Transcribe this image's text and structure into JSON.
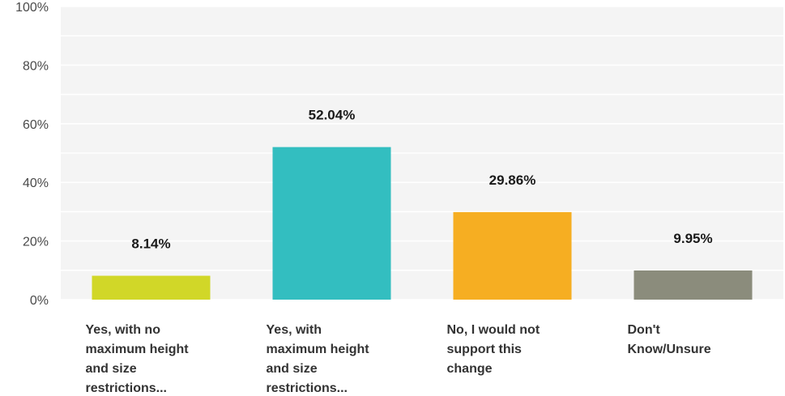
{
  "chart_data": {
    "type": "bar",
    "categories": [
      [
        "Yes, with no",
        "maximum height",
        "and size",
        "restrictions..."
      ],
      [
        "Yes, with",
        "maximum height",
        "and size",
        "restrictions..."
      ],
      [
        "No, I would not",
        "support this",
        "change"
      ],
      [
        "Don't",
        "Know/Unsure"
      ]
    ],
    "values": [
      8.14,
      52.04,
      29.86,
      9.95
    ],
    "data_labels": [
      "8.14%",
      "52.04%",
      "29.86%",
      "9.95%"
    ],
    "colors": [
      "#d1d728",
      "#33bec0",
      "#f6ae22",
      "#8b8c7c"
    ],
    "ylim": [
      0,
      100
    ],
    "yticks": [
      0,
      20,
      40,
      60,
      80,
      100
    ],
    "ytick_labels": [
      "0%",
      "20%",
      "40%",
      "60%",
      "80%",
      "100%"
    ],
    "grid": true,
    "plot_background": "#f4f4f4",
    "gridline_color": "#ffffff"
  }
}
